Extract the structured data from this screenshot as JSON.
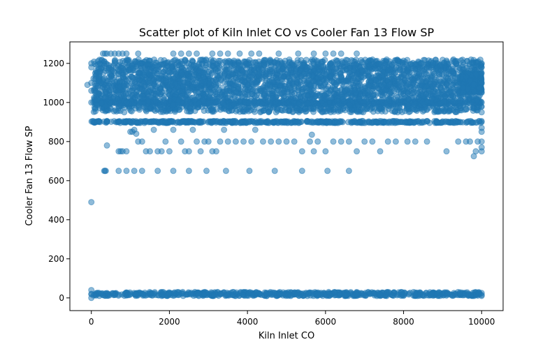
{
  "chart_data": {
    "type": "scatter",
    "title": "Scatter plot of Kiln Inlet CO vs Cooler Fan 13 Flow SP",
    "xlabel": "Kiln Inlet CO",
    "ylabel": "Cooler Fan 13 Flow SP",
    "xlim": [
      -550,
      10550
    ],
    "ylim": [
      -65,
      1310
    ],
    "xticks": [
      0,
      2000,
      4000,
      6000,
      8000,
      10000
    ],
    "yticks": [
      0,
      200,
      400,
      600,
      800,
      1000,
      1200
    ],
    "grid": false,
    "legend": "none",
    "marker_color": "#1f77b4",
    "marker_alpha": 0.5,
    "bands": [
      {
        "y": 20,
        "x_range": [
          0,
          10000
        ],
        "jitter": 10,
        "density": 700
      },
      {
        "y": 900,
        "x_range": [
          0,
          10000
        ],
        "jitter": 5,
        "density": 500
      },
      {
        "y": 1000,
        "x_range": [
          50,
          10000
        ],
        "jitter": 6,
        "density": 450
      },
      {
        "y_range": [
          950,
          1220
        ],
        "x_range": [
          50,
          10000
        ],
        "density": 3500
      },
      {
        "y_range": [
          1050,
          1150
        ],
        "x_range": [
          9500,
          10000
        ],
        "density": 300
      }
    ],
    "points": [
      {
        "x": -100,
        "y": 1090
      },
      {
        "x": 0,
        "y": 1200
      },
      {
        "x": 0,
        "y": 1180
      },
      {
        "x": 0,
        "y": 1100
      },
      {
        "x": 0,
        "y": 1060
      },
      {
        "x": 0,
        "y": 1000
      },
      {
        "x": 0,
        "y": 490
      },
      {
        "x": 0,
        "y": 40
      },
      {
        "x": 0,
        "y": 0
      },
      {
        "x": 100,
        "y": 1150
      },
      {
        "x": 100,
        "y": 1050
      },
      {
        "x": 300,
        "y": 1250
      },
      {
        "x": 350,
        "y": 1250
      },
      {
        "x": 400,
        "y": 1250
      },
      {
        "x": 500,
        "y": 1250
      },
      {
        "x": 600,
        "y": 1250
      },
      {
        "x": 700,
        "y": 1250
      },
      {
        "x": 800,
        "y": 1250
      },
      {
        "x": 900,
        "y": 1250
      },
      {
        "x": 1200,
        "y": 1250
      },
      {
        "x": 2100,
        "y": 1250
      },
      {
        "x": 2300,
        "y": 1250
      },
      {
        "x": 2500,
        "y": 1250
      },
      {
        "x": 2700,
        "y": 1250
      },
      {
        "x": 3100,
        "y": 1250
      },
      {
        "x": 3300,
        "y": 1250
      },
      {
        "x": 3500,
        "y": 1250
      },
      {
        "x": 3800,
        "y": 1250
      },
      {
        "x": 4100,
        "y": 1250
      },
      {
        "x": 4300,
        "y": 1250
      },
      {
        "x": 4800,
        "y": 1250
      },
      {
        "x": 5300,
        "y": 1250
      },
      {
        "x": 5700,
        "y": 1250
      },
      {
        "x": 6000,
        "y": 1250
      },
      {
        "x": 6200,
        "y": 1250
      },
      {
        "x": 6400,
        "y": 1250
      },
      {
        "x": 6800,
        "y": 1250
      },
      {
        "x": 350,
        "y": 650
      },
      {
        "x": 330,
        "y": 650
      },
      {
        "x": 370,
        "y": 650
      },
      {
        "x": 400,
        "y": 780
      },
      {
        "x": 700,
        "y": 750
      },
      {
        "x": 750,
        "y": 750
      },
      {
        "x": 800,
        "y": 750
      },
      {
        "x": 900,
        "y": 750
      },
      {
        "x": 1000,
        "y": 850
      },
      {
        "x": 1050,
        "y": 850
      },
      {
        "x": 1100,
        "y": 860
      },
      {
        "x": 1150,
        "y": 840
      },
      {
        "x": 1200,
        "y": 800
      },
      {
        "x": 1300,
        "y": 800
      },
      {
        "x": 1400,
        "y": 750
      },
      {
        "x": 1500,
        "y": 750
      },
      {
        "x": 1600,
        "y": 860
      },
      {
        "x": 1700,
        "y": 750
      },
      {
        "x": 1800,
        "y": 750
      },
      {
        "x": 1900,
        "y": 800
      },
      {
        "x": 2000,
        "y": 750
      },
      {
        "x": 2100,
        "y": 860
      },
      {
        "x": 2300,
        "y": 800
      },
      {
        "x": 2400,
        "y": 750
      },
      {
        "x": 2500,
        "y": 750
      },
      {
        "x": 2600,
        "y": 860
      },
      {
        "x": 2700,
        "y": 800
      },
      {
        "x": 2800,
        "y": 750
      },
      {
        "x": 2900,
        "y": 800
      },
      {
        "x": 3000,
        "y": 800
      },
      {
        "x": 3100,
        "y": 750
      },
      {
        "x": 3200,
        "y": 750
      },
      {
        "x": 3300,
        "y": 800
      },
      {
        "x": 3400,
        "y": 860
      },
      {
        "x": 3500,
        "y": 800
      },
      {
        "x": 3700,
        "y": 800
      },
      {
        "x": 3900,
        "y": 800
      },
      {
        "x": 4100,
        "y": 800
      },
      {
        "x": 4200,
        "y": 860
      },
      {
        "x": 4400,
        "y": 800
      },
      {
        "x": 4600,
        "y": 800
      },
      {
        "x": 4800,
        "y": 800
      },
      {
        "x": 5000,
        "y": 800
      },
      {
        "x": 5200,
        "y": 800
      },
      {
        "x": 5400,
        "y": 750
      },
      {
        "x": 5600,
        "y": 800
      },
      {
        "x": 5650,
        "y": 835
      },
      {
        "x": 5700,
        "y": 750
      },
      {
        "x": 5800,
        "y": 800
      },
      {
        "x": 6000,
        "y": 750
      },
      {
        "x": 6200,
        "y": 800
      },
      {
        "x": 6400,
        "y": 800
      },
      {
        "x": 6600,
        "y": 800
      },
      {
        "x": 6800,
        "y": 750
      },
      {
        "x": 7000,
        "y": 800
      },
      {
        "x": 7200,
        "y": 800
      },
      {
        "x": 7400,
        "y": 750
      },
      {
        "x": 7600,
        "y": 800
      },
      {
        "x": 7800,
        "y": 800
      },
      {
        "x": 8100,
        "y": 800
      },
      {
        "x": 8300,
        "y": 800
      },
      {
        "x": 8600,
        "y": 800
      },
      {
        "x": 9100,
        "y": 750
      },
      {
        "x": 9400,
        "y": 800
      },
      {
        "x": 9600,
        "y": 800
      },
      {
        "x": 9700,
        "y": 800
      },
      {
        "x": 9800,
        "y": 725
      },
      {
        "x": 9850,
        "y": 750
      },
      {
        "x": 9900,
        "y": 800
      },
      {
        "x": 700,
        "y": 650
      },
      {
        "x": 900,
        "y": 650
      },
      {
        "x": 1100,
        "y": 650
      },
      {
        "x": 1300,
        "y": 650
      },
      {
        "x": 1700,
        "y": 650
      },
      {
        "x": 2100,
        "y": 650
      },
      {
        "x": 2500,
        "y": 650
      },
      {
        "x": 2950,
        "y": 650
      },
      {
        "x": 3450,
        "y": 650
      },
      {
        "x": 4050,
        "y": 650
      },
      {
        "x": 4700,
        "y": 650
      },
      {
        "x": 5400,
        "y": 650
      },
      {
        "x": 6050,
        "y": 650
      },
      {
        "x": 6600,
        "y": 650
      },
      {
        "x": 10000,
        "y": 1200
      },
      {
        "x": 10000,
        "y": 1180
      },
      {
        "x": 10000,
        "y": 1150
      },
      {
        "x": 10000,
        "y": 1100
      },
      {
        "x": 10000,
        "y": 1050
      },
      {
        "x": 10000,
        "y": 1000
      },
      {
        "x": 10000,
        "y": 950
      },
      {
        "x": 10000,
        "y": 900
      },
      {
        "x": 10000,
        "y": 870
      },
      {
        "x": 10000,
        "y": 850
      },
      {
        "x": 10000,
        "y": 800
      },
      {
        "x": 10000,
        "y": 770
      },
      {
        "x": 10000,
        "y": 750
      },
      {
        "x": 10000,
        "y": 25
      },
      {
        "x": 10000,
        "y": 15
      }
    ]
  }
}
